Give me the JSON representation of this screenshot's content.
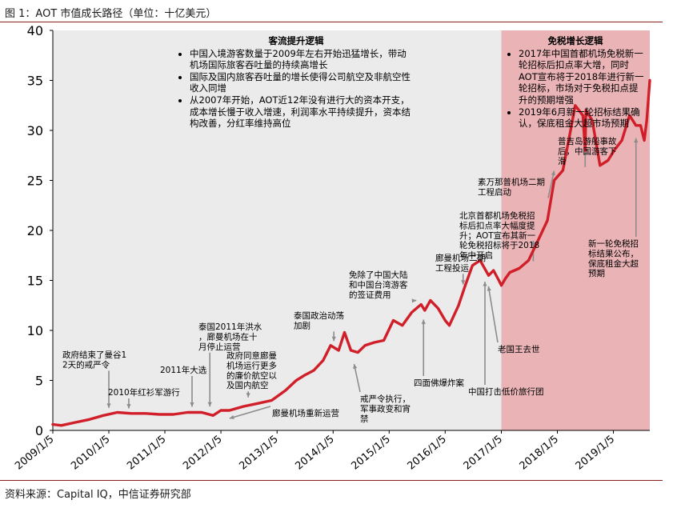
{
  "figure_title": "图 1：AOT 市值成长路径（单位：十亿美元）",
  "source_note": "资料来源：Capital IQ，中信证券研究部",
  "colors": {
    "line": "#d11f2a",
    "phase1_bg": "#ebebeb",
    "phase2_bg": "#eab3b6",
    "rule": "#8a1e1e",
    "arrow": "#8c8c8c"
  },
  "phases": [
    {
      "header": "客流提升逻辑",
      "bullets": [
        "中国入境游客数量于2009年左右开始迅猛增长，带动机场国际旅客吞吐量的持续高增长",
        "国际及国内旅客吞吐量的增长使得公司航空及非航空性收入同增",
        "从2007年开始，AOT近12年没有进行大的资本开支，成本增长慢于收入增速，利润率水平持续提升，资本结构改善，分红率维持高位"
      ]
    },
    {
      "header": "免税增长逻辑",
      "bullets": [
        "2017年中国首都机场免税新一轮招标后扣点率大增，同时AOT宣布将于2018年进行新一轮招标，市场对于免税扣点提升的预期增强",
        "2019年6月新一轮招标结果确认，保底租金大超市场预期"
      ]
    }
  ],
  "chart_data": {
    "type": "line",
    "title": "",
    "xlabel": "",
    "ylabel": "",
    "ylim": [
      0,
      40
    ],
    "yticks": [
      "0",
      "5",
      "10",
      "15",
      "20",
      "25",
      "30",
      "35",
      "40"
    ],
    "xlim": [
      "2009-01-05",
      "2019-08-30"
    ],
    "xticks": [
      "2009/1/5",
      "2010/1/5",
      "2011/1/5",
      "2012/1/5",
      "2013/1/5",
      "2014/1/5",
      "2015/1/5",
      "2016/1/5",
      "2017/1/5",
      "2018/1/5",
      "2019/1/5"
    ],
    "grid": false,
    "phase_split": "2017-01-05",
    "series": [
      {
        "name": "",
        "points": [
          [
            "2009-01-05",
            0.6
          ],
          [
            "2009-03-01",
            0.5
          ],
          [
            "2009-06-01",
            0.8
          ],
          [
            "2009-09-01",
            1.1
          ],
          [
            "2009-12-01",
            1.5
          ],
          [
            "2010-03-01",
            1.8
          ],
          [
            "2010-06-01",
            1.7
          ],
          [
            "2010-09-01",
            1.7
          ],
          [
            "2010-12-01",
            1.6
          ],
          [
            "2011-03-01",
            1.6
          ],
          [
            "2011-06-01",
            1.8
          ],
          [
            "2011-09-01",
            1.8
          ],
          [
            "2011-11-15",
            1.5
          ],
          [
            "2012-01-05",
            2.0
          ],
          [
            "2012-03-01",
            2.0
          ],
          [
            "2012-06-01",
            2.4
          ],
          [
            "2012-09-01",
            2.7
          ],
          [
            "2012-12-01",
            3.0
          ],
          [
            "2013-03-01",
            4.0
          ],
          [
            "2013-05-10",
            5.0
          ],
          [
            "2013-07-01",
            5.5
          ],
          [
            "2013-09-01",
            6.0
          ],
          [
            "2013-11-01",
            7.0
          ],
          [
            "2013-12-20",
            8.5
          ],
          [
            "2014-02-10",
            8.0
          ],
          [
            "2014-03-20",
            9.8
          ],
          [
            "2014-05-01",
            8.0
          ],
          [
            "2014-06-15",
            7.8
          ],
          [
            "2014-08-01",
            8.5
          ],
          [
            "2014-10-01",
            8.8
          ],
          [
            "2014-12-01",
            9.0
          ],
          [
            "2015-02-01",
            11.0
          ],
          [
            "2015-04-01",
            10.5
          ],
          [
            "2015-06-01",
            11.8
          ],
          [
            "2015-08-01",
            12.6
          ],
          [
            "2015-08-25",
            12.0
          ],
          [
            "2015-10-01",
            13.0
          ],
          [
            "2015-11-20",
            12.2
          ],
          [
            "2016-01-05",
            11.0
          ],
          [
            "2016-02-01",
            10.5
          ],
          [
            "2016-04-01",
            12.5
          ],
          [
            "2016-05-15",
            14.5
          ],
          [
            "2016-07-01",
            16.5
          ],
          [
            "2016-08-20",
            17.0
          ],
          [
            "2016-10-14",
            15.5
          ],
          [
            "2016-11-15",
            16.0
          ],
          [
            "2016-12-20",
            15.0
          ],
          [
            "2017-01-05",
            14.5
          ],
          [
            "2017-02-01",
            15.2
          ],
          [
            "2017-03-01",
            15.8
          ],
          [
            "2017-05-01",
            16.2
          ],
          [
            "2017-07-01",
            17.0
          ],
          [
            "2017-09-01",
            19.0
          ],
          [
            "2017-11-01",
            21.0
          ],
          [
            "2017-12-15",
            25.0
          ],
          [
            "2018-02-10",
            26.0
          ],
          [
            "2018-04-01",
            30.0
          ],
          [
            "2018-05-01",
            32.5
          ],
          [
            "2018-06-20",
            31.5
          ],
          [
            "2018-07-05",
            28.0
          ],
          [
            "2018-07-10",
            32.0
          ],
          [
            "2018-08-20",
            31.0
          ],
          [
            "2018-10-10",
            26.5
          ],
          [
            "2018-12-01",
            27.0
          ],
          [
            "2019-01-10",
            28.0
          ],
          [
            "2019-03-01",
            29.0
          ],
          [
            "2019-04-20",
            31.5
          ],
          [
            "2019-06-01",
            30.5
          ],
          [
            "2019-07-01",
            30.5
          ],
          [
            "2019-07-25",
            29.0
          ],
          [
            "2019-08-10",
            31.0
          ],
          [
            "2019-08-30",
            35.0
          ]
        ]
      }
    ],
    "annotations": [
      {
        "text": "政府结束了曼谷12天的戒严令",
        "date": "2010-01-05"
      },
      {
        "text": "2010年红衫军游行",
        "date": "2010-05-15"
      },
      {
        "text": "2011年大选",
        "date": "2011-07-01"
      },
      {
        "text": "泰国2011年洪水，廊曼机场在十月停止运营",
        "date": "2011-10-25"
      },
      {
        "text": "政府同意廊曼机场运行更多的廉价航空以及国内航空",
        "date": "2012-07-01"
      },
      {
        "text": "廊曼机场重新运营",
        "date": "2012-03-01"
      },
      {
        "text": "泰国政治动荡加剧",
        "date": "2014-01-10"
      },
      {
        "text": "免除了中国大陆和中国台湾游客的签证费用",
        "date": "2015-07-01"
      },
      {
        "text": "戒严令执行，军事政变和宵禁",
        "date": "2014-05-22"
      },
      {
        "text": "廊曼机场二期工程投运",
        "date": "2016-05-01"
      },
      {
        "text": "四面佛爆炸案",
        "date": "2015-08-17"
      },
      {
        "text": "北京首都机场免税招标后扣点率大幅度提升；AOT宣布其新一轮免税招标将于2018年中开启",
        "date": "2017-08-01"
      },
      {
        "text": "中国打击低价旅行团",
        "date": "2016-09-20"
      },
      {
        "text": "老国王去世",
        "date": "2016-10-13"
      },
      {
        "text": "素万那普机场二期工程启动",
        "date": "2017-12-15"
      },
      {
        "text": "普吉岛游船事故后，中国游客下滑",
        "date": "2018-07-05"
      },
      {
        "text": "新一轮免税招标结果公布，保底租金大超预期",
        "date": "2019-06-01"
      }
    ]
  }
}
